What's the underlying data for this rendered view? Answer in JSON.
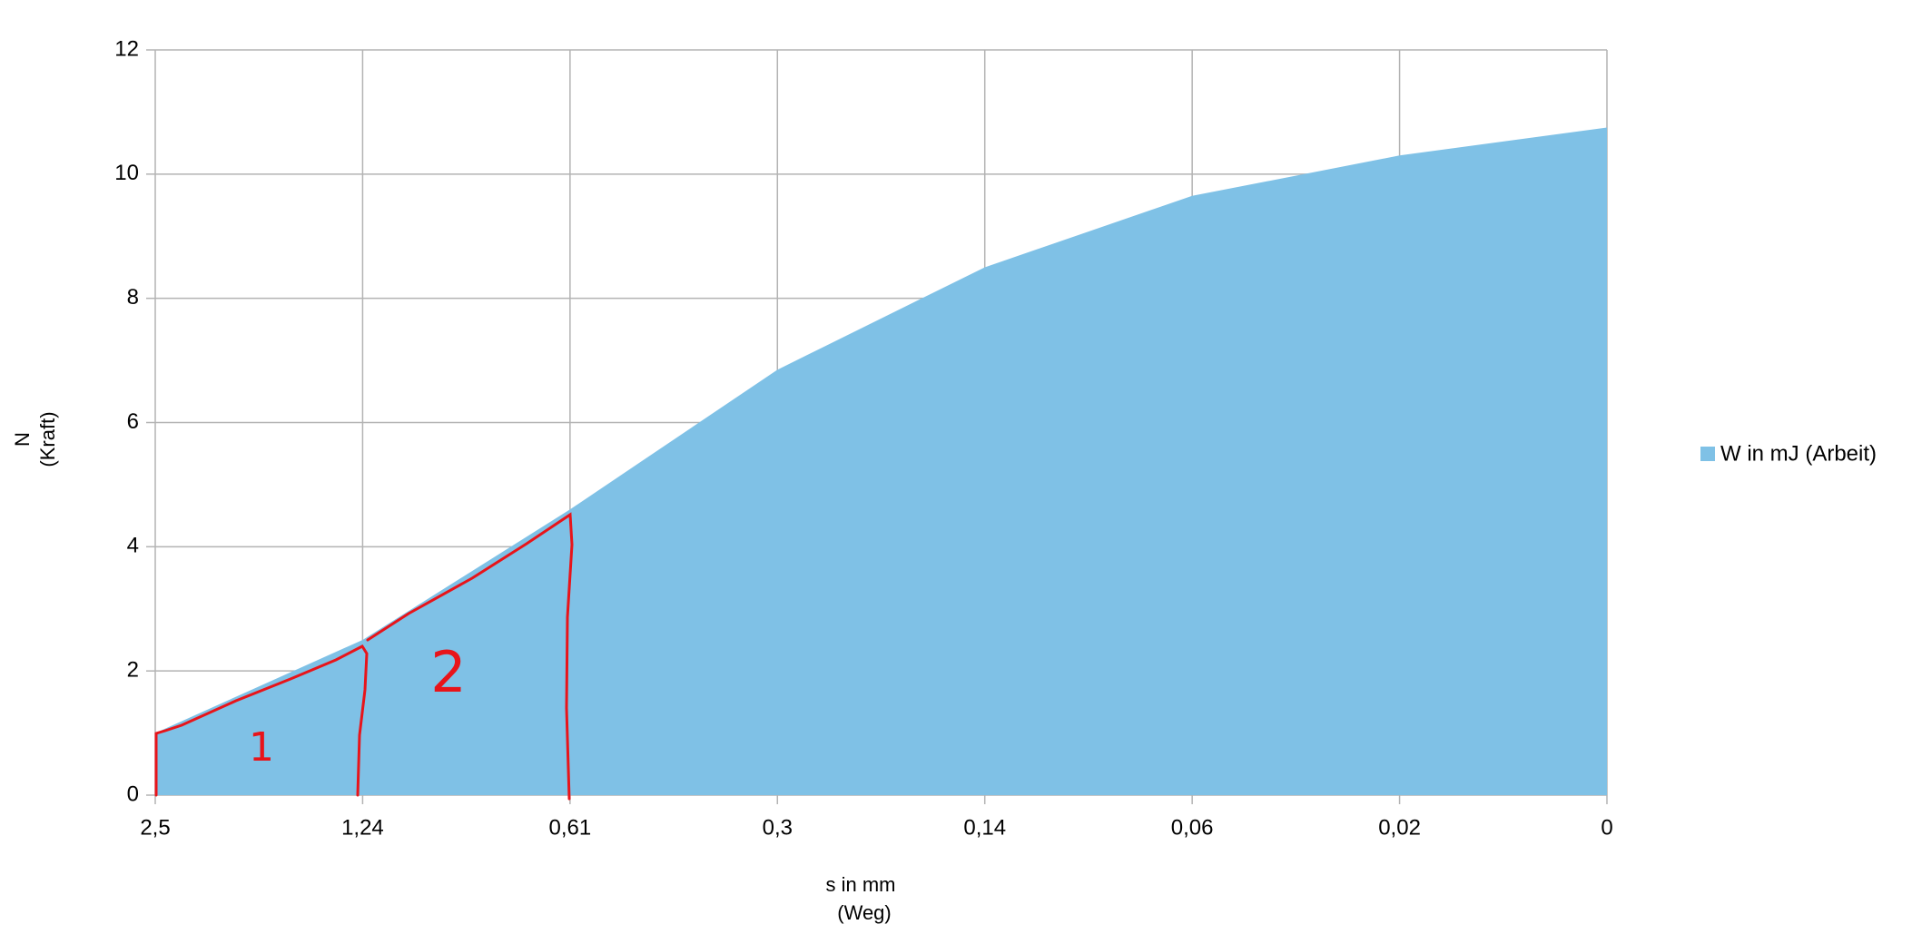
{
  "chart_data": {
    "type": "area",
    "categories": [
      "2,5",
      "1,24",
      "0,61",
      "0,3",
      "0,14",
      "0,06",
      "0,02",
      "0"
    ],
    "series": [
      {
        "name": "W in mJ (Arbeit)",
        "color": "#7fc1e6",
        "values": [
          1.0,
          2.5,
          4.6,
          6.85,
          8.5,
          9.65,
          10.3,
          10.75
        ]
      }
    ],
    "ylim": [
      0,
      12
    ],
    "yticks": [
      0,
      2,
      4,
      6,
      8,
      10,
      12
    ],
    "grid": true,
    "x_label": [
      "s in mm",
      "(Weg)"
    ],
    "y_label": [
      "N",
      "(Kraft)"
    ],
    "legend": "right",
    "annotations": [
      "1",
      "2"
    ]
  }
}
